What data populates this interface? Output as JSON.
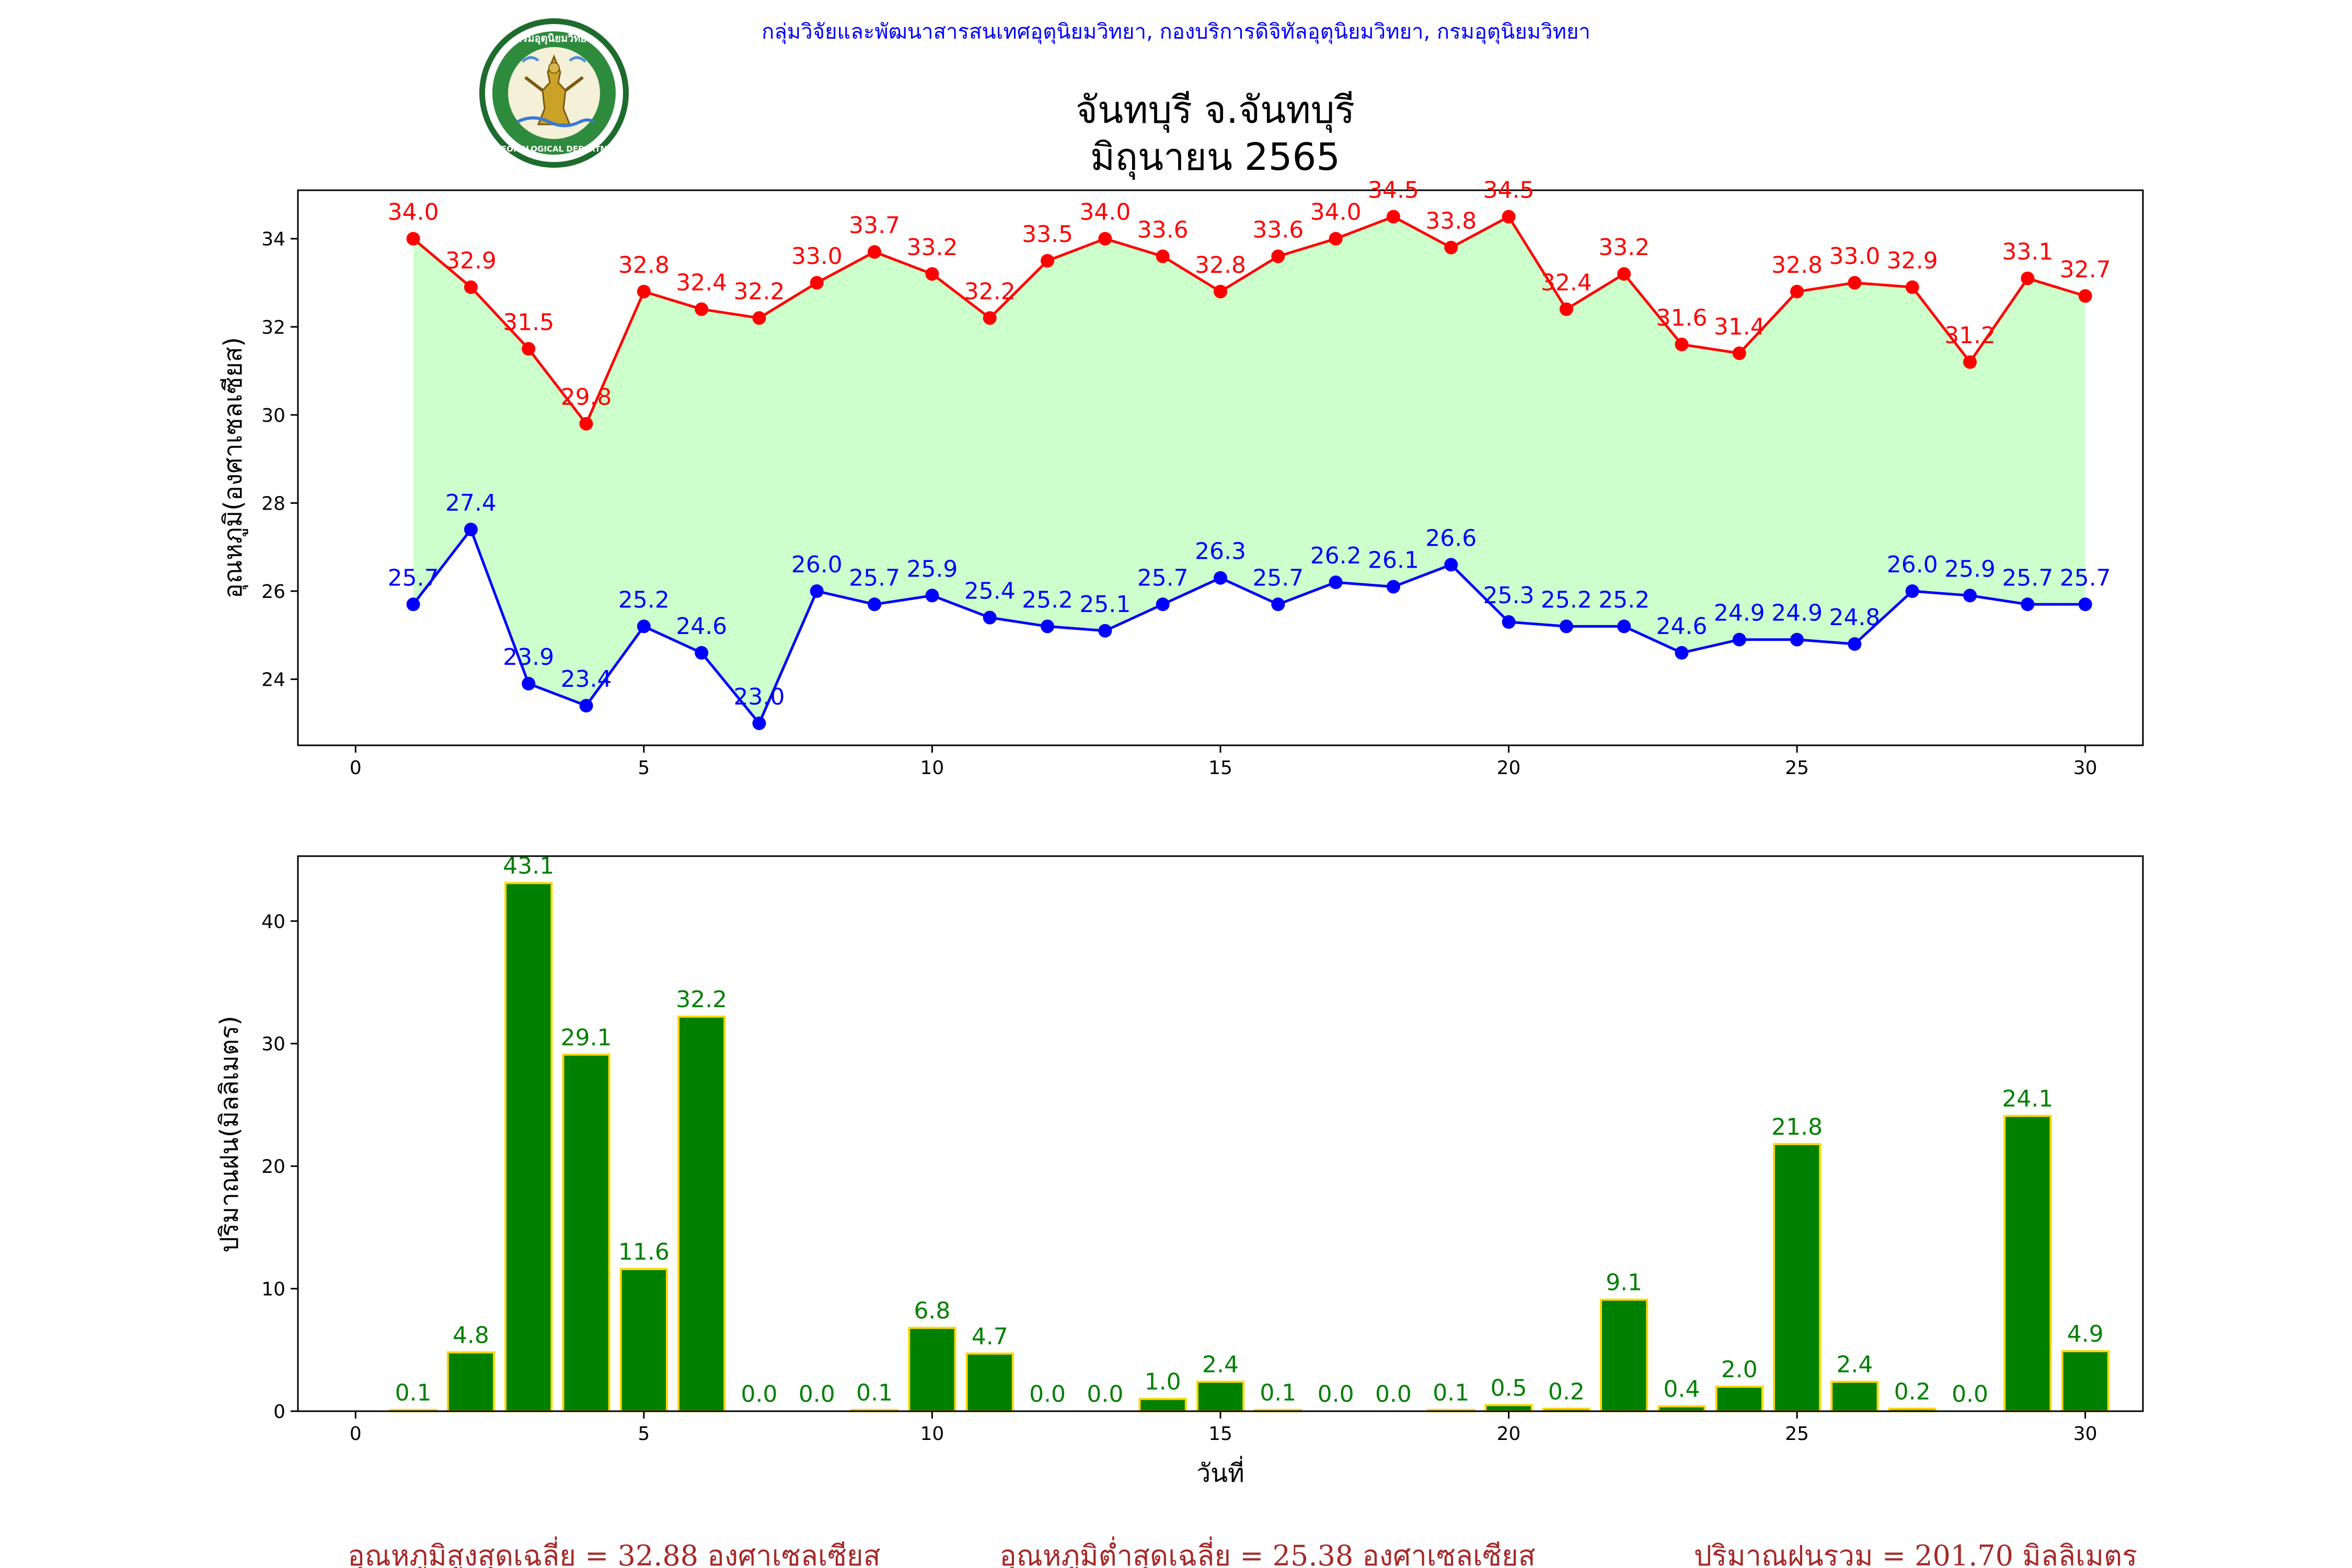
{
  "header": {
    "agency": "กลุ่มวิจัยและพัฒนาสารสนเทศอุตุนิยมวิทยา, กองบริการดิจิทัลอุตุนิยมวิทยา, กรมอุตุนิยมวิทยา",
    "title_line1": "จันทบุรี จ.จันทบุรี",
    "title_line2": "มิถุนายน 2565"
  },
  "logo": {
    "text_top": "กรมอุตุนิยมวิทยา",
    "text_bottom": "METEOROLOGICAL DEPARTMENT"
  },
  "summary": {
    "max_avg": "อุณหภูมิสูงสุดเฉลี่ย = 32.88 องศาเซลเซียส",
    "min_avg": "อุณหภูมิต่ำสุดเฉลี่ย = 25.38 องศาเซลเซียส",
    "rain_total": "ปริมาณฝนรวม = 201.70 มิลลิเมตร"
  },
  "chart_data": [
    {
      "type": "line",
      "ylabel": "อุณหภูมิ(องศาเซลเซียส)",
      "xlabel": "",
      "xlim": [
        -1,
        31
      ],
      "ylim": [
        22.5,
        35.1
      ],
      "xticks": [
        0,
        5,
        10,
        15,
        20,
        25,
        30
      ],
      "yticks": [
        24,
        26,
        28,
        30,
        32,
        34
      ],
      "fill_between": "#ccffcc",
      "x": [
        1,
        2,
        3,
        4,
        5,
        6,
        7,
        8,
        9,
        10,
        11,
        12,
        13,
        14,
        15,
        16,
        17,
        18,
        19,
        20,
        21,
        22,
        23,
        24,
        25,
        26,
        27,
        28,
        29,
        30
      ],
      "series": [
        {
          "color": "#ff0000",
          "values": [
            34.0,
            32.9,
            31.5,
            29.8,
            32.8,
            32.4,
            32.2,
            33.0,
            33.7,
            33.2,
            32.2,
            33.5,
            34.0,
            33.6,
            32.8,
            33.6,
            34.0,
            34.5,
            33.8,
            34.5,
            32.4,
            33.2,
            31.6,
            31.4,
            32.8,
            33.0,
            32.9,
            31.2,
            33.1,
            32.7
          ]
        },
        {
          "color": "#0000ff",
          "values": [
            25.7,
            27.4,
            23.9,
            23.4,
            25.2,
            24.6,
            23.0,
            26.0,
            25.7,
            25.9,
            25.4,
            25.2,
            25.1,
            25.7,
            26.3,
            25.7,
            26.2,
            26.1,
            26.6,
            25.3,
            25.2,
            25.2,
            24.6,
            24.9,
            24.9,
            24.8,
            26.0,
            25.9,
            25.7,
            25.7
          ]
        }
      ]
    },
    {
      "type": "bar",
      "ylabel": "ปริมาณฝน(มิลลิเมตร)",
      "xlabel": "วันที่",
      "xlim": [
        -1,
        31
      ],
      "ylim": [
        0,
        45.3
      ],
      "xticks": [
        0,
        5,
        10,
        15,
        20,
        25,
        30
      ],
      "yticks": [
        0,
        10,
        20,
        30,
        40
      ],
      "bar_color": "#008000",
      "edge_color": "#ffd700",
      "label_color": "#008000",
      "x": [
        1,
        2,
        3,
        4,
        5,
        6,
        7,
        8,
        9,
        10,
        11,
        12,
        13,
        14,
        15,
        16,
        17,
        18,
        19,
        20,
        21,
        22,
        23,
        24,
        25,
        26,
        27,
        28,
        29,
        30
      ],
      "values": [
        0.1,
        4.8,
        43.1,
        29.1,
        11.6,
        32.2,
        0.0,
        0.0,
        0.1,
        6.8,
        4.7,
        0.0,
        0.0,
        1.0,
        2.4,
        0.1,
        0.0,
        0.0,
        0.1,
        0.5,
        0.2,
        9.1,
        0.4,
        2.0,
        21.8,
        2.4,
        0.2,
        0.0,
        24.1,
        4.9
      ]
    }
  ]
}
